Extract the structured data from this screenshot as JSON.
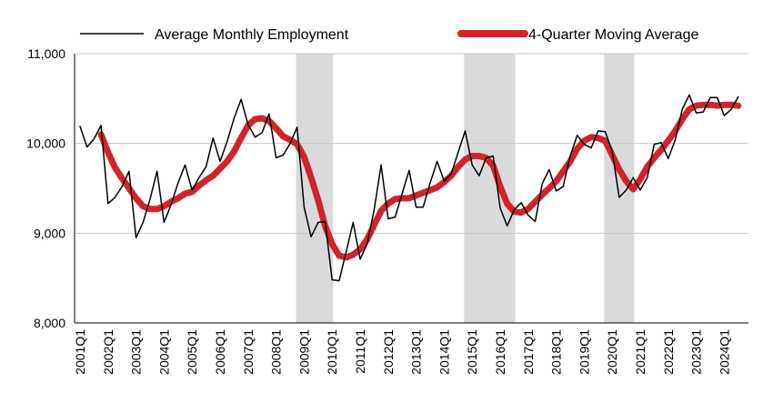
{
  "chart_data": {
    "type": "line",
    "title": "",
    "xlabel": "",
    "ylabel": "",
    "ylim": [
      8000,
      11000
    ],
    "yticks": [
      "8,000",
      "9,000",
      "10,000",
      "11,000"
    ],
    "grid": "horizontal",
    "legend_position": "top",
    "x_start": "2001Q1",
    "x_end": "2024Q3",
    "xticks": [
      "2001Q1",
      "2002Q1",
      "2003Q1",
      "2004Q1",
      "2005Q1",
      "2006Q1",
      "2007Q1",
      "2008Q1",
      "2009Q1",
      "2010Q1",
      "2011Q1",
      "2012Q1",
      "2013Q1",
      "2014Q1",
      "2015Q1",
      "2016Q1",
      "2017Q1",
      "2018Q1",
      "2019Q1",
      "2020Q1",
      "2021Q1",
      "2022Q1",
      "2023Q1",
      "2024Q1"
    ],
    "recessions": [
      {
        "start": "2008Q4",
        "end": "2010Q1"
      },
      {
        "start": "2014Q4",
        "end": "2016Q3"
      },
      {
        "start": "2019Q4",
        "end": "2020Q4"
      }
    ],
    "colors": {
      "recession": "#d9dadb",
      "monthly": "#000000",
      "moving_average": "#d2232a",
      "grid": "#c8c8c8"
    },
    "series": [
      {
        "name": "Average Monthly Employment",
        "values": [
          10190,
          9960,
          10050,
          10200,
          9330,
          9400,
          9520,
          9690,
          8950,
          9120,
          9380,
          9690,
          9120,
          9320,
          9560,
          9760,
          9480,
          9620,
          9740,
          10060,
          9800,
          10020,
          10280,
          10490,
          10210,
          10070,
          10120,
          10330,
          9840,
          9870,
          10000,
          10180,
          9290,
          8960,
          9120,
          9130,
          8480,
          8470,
          8790,
          9120,
          8710,
          8880,
          9260,
          9760,
          9160,
          9180,
          9440,
          9700,
          9290,
          9290,
          9560,
          9800,
          9580,
          9660,
          9900,
          10140,
          9760,
          9640,
          9840,
          9860,
          9280,
          9080,
          9260,
          9340,
          9200,
          9130,
          9550,
          9710,
          9470,
          9520,
          9860,
          10090,
          9990,
          9950,
          10140,
          10130,
          9910,
          9400,
          9480,
          9620,
          9480,
          9620,
          9990,
          10010,
          9830,
          10040,
          10380,
          10540,
          10340,
          10350,
          10510,
          10510,
          10310,
          10380,
          10520
        ]
      },
      {
        "name": "4-Quarter Moving Average",
        "values": [
          null,
          null,
          null,
          10100,
          9900,
          9730,
          9610,
          9500,
          9390,
          9300,
          9270,
          9270,
          9300,
          9350,
          9390,
          9440,
          9460,
          9530,
          9590,
          9640,
          9720,
          9800,
          9910,
          10060,
          10200,
          10270,
          10280,
          10250,
          10170,
          10080,
          10040,
          9990,
          9850,
          9620,
          9370,
          9080,
          8880,
          8750,
          8730,
          8760,
          8820,
          8930,
          9090,
          9250,
          9330,
          9380,
          9390,
          9390,
          9420,
          9450,
          9480,
          9510,
          9570,
          9640,
          9740,
          9820,
          9860,
          9860,
          9840,
          9750,
          9520,
          9330,
          9240,
          9230,
          9270,
          9350,
          9430,
          9500,
          9580,
          9690,
          9800,
          9940,
          10030,
          10070,
          10060,
          10030,
          9870,
          9710,
          9580,
          9490,
          9600,
          9740,
          9840,
          9930,
          10030,
          10140,
          10270,
          10380,
          10420,
          10430,
          10430,
          10420,
          10430,
          10430,
          10420
        ]
      }
    ]
  }
}
